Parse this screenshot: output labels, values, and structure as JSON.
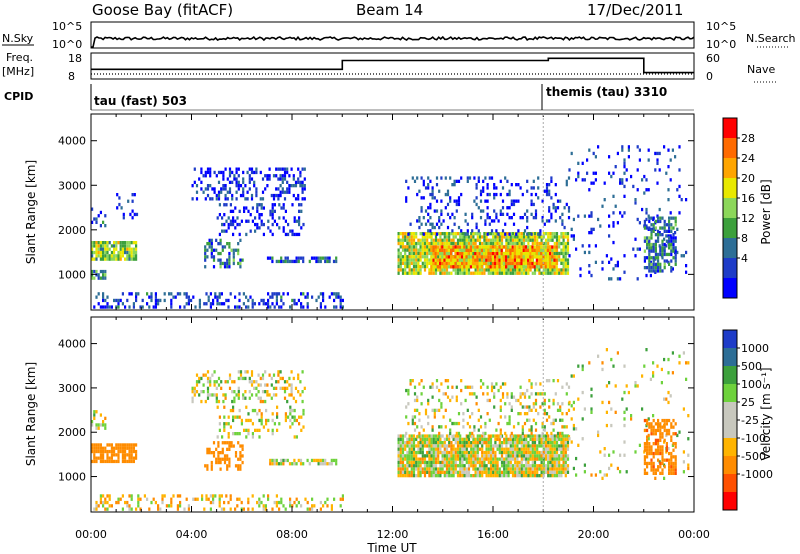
{
  "header": {
    "site": "Goose Bay (fitACF)",
    "beam": "Beam 14",
    "date": "17/Dec/2011"
  },
  "top_panels": {
    "nsky_label": "N.Sky",
    "nsky_ticks": [
      "10^5",
      "10^0"
    ],
    "nsearch_label": "N.Search",
    "nsearch_ticks": [
      "10^5",
      "10^0"
    ],
    "freq_label": "Freq.",
    "freq_unit": "[MHz]",
    "freq_ticks": [
      "18",
      "8"
    ],
    "nave_label": "Nave",
    "nave_ticks": [
      "60",
      "0"
    ],
    "cpid_label": "CPID",
    "cpid_segments": [
      {
        "label": "tau (fast) 503",
        "start_hour": 0
      },
      {
        "label": "themis (tau) 3310",
        "start_hour": 18
      }
    ],
    "freq_steps": [
      {
        "start_hour": 0,
        "end_hour": 10,
        "level": 0.35
      },
      {
        "start_hour": 10,
        "end_hour": 18.2,
        "level": 0.75
      },
      {
        "start_hour": 18.2,
        "end_hour": 22,
        "level": 0.85
      },
      {
        "start_hour": 22,
        "end_hour": 24,
        "level": 0.2
      }
    ]
  },
  "power_colorbar": {
    "label": "Power [dB]",
    "ticks": [
      "28",
      "24",
      "20",
      "16",
      "12",
      "8",
      "4"
    ],
    "colors": [
      "#ff0000",
      "#ff6a00",
      "#ffa500",
      "#e8e800",
      "#8cd75a",
      "#3ca03c",
      "#2d6e96",
      "#1e3cc8",
      "#0000ff"
    ]
  },
  "velocity_colorbar": {
    "label": "Velocity [m s⁻¹]",
    "ticks": [
      "1000",
      "500",
      "100",
      "25",
      "-25",
      "-100",
      "-500",
      "-1000"
    ],
    "colors": [
      "#1e3cc8",
      "#2d6e96",
      "#3ca03c",
      "#6ed23c",
      "#c8c8be",
      "#c8c8be",
      "#ffb400",
      "#ff8c00",
      "#ff5000",
      "#ff0000"
    ]
  },
  "chart_data": [
    {
      "type": "heatmap",
      "panel": "power",
      "ylabel": "Slant Range [km]",
      "yticks": [
        1000,
        2000,
        3000,
        4000
      ],
      "ylim": [
        200,
        4600
      ],
      "xlim": [
        0,
        24
      ],
      "xticks": [
        "00:00",
        "04:00",
        "08:00",
        "12:00",
        "16:00",
        "20:00",
        "00:00"
      ],
      "regions": [
        {
          "t0": 0.0,
          "t1": 1.8,
          "r0": 1350,
          "r1": 1750,
          "level": 0.5,
          "density": 0.85
        },
        {
          "t0": 0.0,
          "t1": 0.6,
          "r0": 950,
          "r1": 1100,
          "level": 0.3,
          "density": 0.8
        },
        {
          "t0": 0.0,
          "t1": 0.6,
          "r0": 2100,
          "r1": 2500,
          "level": 0.1,
          "density": 0.4
        },
        {
          "t0": 1.0,
          "t1": 1.8,
          "r0": 2300,
          "r1": 2900,
          "level": 0.05,
          "density": 0.2
        },
        {
          "t0": 4.5,
          "t1": 6.0,
          "r0": 1200,
          "r1": 1800,
          "level": 0.25,
          "density": 0.35
        },
        {
          "t0": 4.0,
          "t1": 8.5,
          "r0": 2700,
          "r1": 3400,
          "level": 0.05,
          "density": 0.35
        },
        {
          "t0": 5.0,
          "t1": 8.5,
          "r0": 1900,
          "r1": 2600,
          "level": 0.05,
          "density": 0.3
        },
        {
          "t0": 7.0,
          "t1": 9.8,
          "r0": 1300,
          "r1": 1400,
          "level": 0.15,
          "density": 0.7
        },
        {
          "t0": 0.0,
          "t1": 10.0,
          "r0": 250,
          "r1": 600,
          "level": 0.1,
          "density": 0.35
        },
        {
          "t0": 12.2,
          "t1": 19.0,
          "r0": 1050,
          "r1": 1950,
          "level": 0.55,
          "density": 0.9
        },
        {
          "t0": 13.5,
          "t1": 18.5,
          "r0": 1150,
          "r1": 1650,
          "level": 0.75,
          "density": 0.9
        },
        {
          "t0": 12.5,
          "t1": 19.0,
          "r0": 1900,
          "r1": 3200,
          "level": 0.08,
          "density": 0.2
        },
        {
          "t0": 19.0,
          "t1": 23.8,
          "r0": 900,
          "r1": 3900,
          "level": 0.05,
          "density": 0.08
        },
        {
          "t0": 22.0,
          "t1": 23.3,
          "r0": 1100,
          "r1": 2300,
          "level": 0.25,
          "density": 0.55
        }
      ]
    },
    {
      "type": "heatmap",
      "panel": "velocity",
      "ylabel": "Slant Range [km]",
      "xlabel": "Time UT",
      "yticks": [
        1000,
        2000,
        3000,
        4000
      ],
      "ylim": [
        200,
        4600
      ],
      "xlim": [
        0,
        24
      ],
      "xticks": [
        "00:00",
        "04:00",
        "08:00",
        "12:00",
        "16:00",
        "20:00",
        "00:00"
      ],
      "regions": [
        {
          "t0": 0.0,
          "t1": 1.8,
          "r0": 1350,
          "r1": 1750,
          "vel": -300,
          "density": 0.85
        },
        {
          "t0": 0.0,
          "t1": 0.6,
          "r0": 2100,
          "r1": 2500,
          "vel": 0,
          "density": 0.4
        },
        {
          "t0": 4.5,
          "t1": 6.0,
          "r0": 1200,
          "r1": 1800,
          "vel": -250,
          "density": 0.35
        },
        {
          "t0": 4.0,
          "t1": 8.5,
          "r0": 2700,
          "r1": 3400,
          "vel": 0,
          "density": 0.3
        },
        {
          "t0": 5.0,
          "t1": 8.5,
          "r0": 1900,
          "r1": 2600,
          "vel": 0,
          "density": 0.25
        },
        {
          "t0": 7.0,
          "t1": 9.8,
          "r0": 1300,
          "r1": 1400,
          "vel": 0,
          "density": 0.7
        },
        {
          "t0": 0.0,
          "t1": 10.0,
          "r0": 250,
          "r1": 600,
          "vel": -50,
          "density": 0.3
        },
        {
          "t0": 12.2,
          "t1": 19.0,
          "r0": 1050,
          "r1": 1950,
          "vel": 0,
          "density": 0.9
        },
        {
          "t0": 12.5,
          "t1": 19.0,
          "r0": 1900,
          "r1": 3200,
          "vel": 0,
          "density": 0.2
        },
        {
          "t0": 19.0,
          "t1": 23.8,
          "r0": 900,
          "r1": 3900,
          "vel": 0,
          "density": 0.06
        },
        {
          "t0": 22.0,
          "t1": 23.3,
          "r0": 1100,
          "r1": 2300,
          "vel": -400,
          "density": 0.55
        }
      ]
    }
  ]
}
